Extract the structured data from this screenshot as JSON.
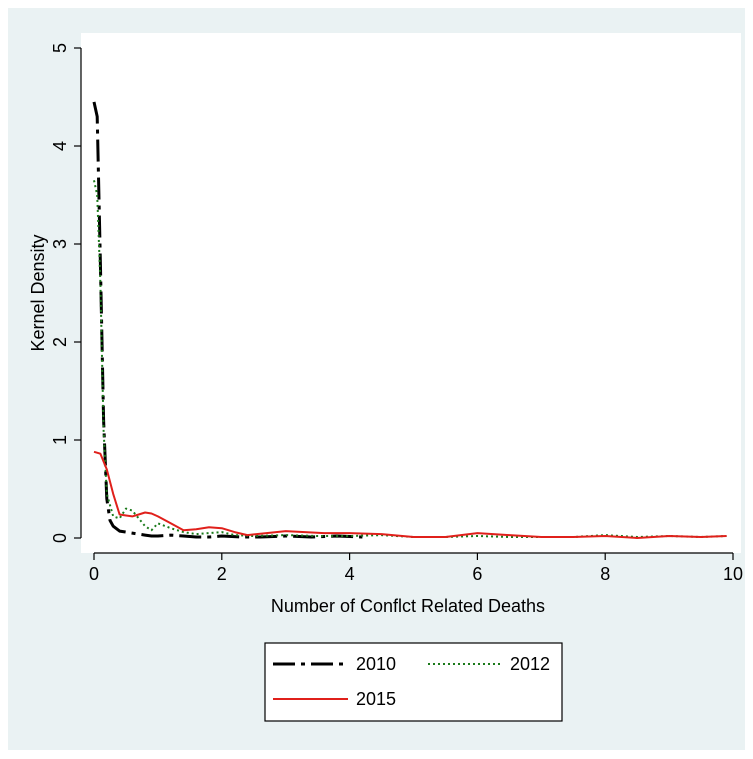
{
  "colors": {
    "outer_background": "#ffffff",
    "graph_region": "#eaf2f3",
    "plot_region": "#ffffff",
    "series_2010": "#000000",
    "series_2012": "#1a7a1a",
    "series_2015": "#e0201b"
  },
  "chart_data": {
    "type": "line",
    "title": "",
    "xlabel": "Number of Conflct Related Deaths",
    "ylabel": "Kernel Density",
    "xlim": [
      0,
      10
    ],
    "ylim": [
      0,
      5
    ],
    "x_ticks": [
      0,
      2,
      4,
      6,
      8,
      10
    ],
    "y_ticks": [
      0,
      1,
      2,
      3,
      4,
      5
    ],
    "grid": false,
    "legend_position": "bottom",
    "series": [
      {
        "name": "2010",
        "style": "long-dash-dot",
        "x": [
          0.0,
          0.05,
          0.1,
          0.15,
          0.2,
          0.25,
          0.3,
          0.4,
          0.5,
          0.6,
          0.7,
          0.8,
          0.9,
          1.0,
          1.2,
          1.4,
          1.6,
          1.8,
          2.0,
          2.3,
          2.6,
          3.0,
          3.4,
          3.8,
          4.2
        ],
        "y": [
          4.45,
          4.3,
          2.8,
          1.2,
          0.4,
          0.18,
          0.12,
          0.07,
          0.06,
          0.05,
          0.04,
          0.03,
          0.02,
          0.02,
          0.03,
          0.02,
          0.01,
          0.01,
          0.02,
          0.01,
          0.01,
          0.02,
          0.01,
          0.02,
          0.01
        ]
      },
      {
        "name": "2012",
        "style": "dotted",
        "x": [
          0.0,
          0.05,
          0.1,
          0.15,
          0.2,
          0.3,
          0.4,
          0.5,
          0.6,
          0.7,
          0.8,
          0.9,
          1.0,
          1.2,
          1.4,
          1.6,
          1.8,
          2.0,
          2.2,
          2.5,
          3.0,
          3.5,
          4.0,
          4.5,
          5.0,
          5.5,
          6.0,
          6.5,
          7.0,
          7.5,
          8.0,
          8.5,
          9.0,
          9.5,
          9.9
        ],
        "y": [
          3.65,
          3.5,
          2.6,
          1.1,
          0.45,
          0.22,
          0.2,
          0.3,
          0.28,
          0.2,
          0.12,
          0.08,
          0.15,
          0.1,
          0.06,
          0.04,
          0.05,
          0.06,
          0.03,
          0.02,
          0.03,
          0.02,
          0.02,
          0.03,
          0.01,
          0.01,
          0.02,
          0.01,
          0.01,
          0.01,
          0.03,
          0.01,
          0.02,
          0.01,
          0.02
        ]
      },
      {
        "name": "2015",
        "style": "solid",
        "x": [
          0.0,
          0.1,
          0.2,
          0.3,
          0.4,
          0.5,
          0.6,
          0.7,
          0.8,
          0.9,
          1.0,
          1.2,
          1.4,
          1.6,
          1.8,
          2.0,
          2.2,
          2.4,
          2.7,
          3.0,
          3.3,
          3.6,
          4.0,
          4.5,
          5.0,
          5.5,
          6.0,
          6.5,
          7.0,
          7.5,
          8.0,
          8.5,
          9.0,
          9.5,
          9.9
        ],
        "y": [
          0.88,
          0.86,
          0.7,
          0.45,
          0.24,
          0.23,
          0.22,
          0.24,
          0.26,
          0.25,
          0.22,
          0.15,
          0.08,
          0.09,
          0.11,
          0.1,
          0.06,
          0.03,
          0.05,
          0.07,
          0.06,
          0.05,
          0.05,
          0.04,
          0.01,
          0.01,
          0.05,
          0.03,
          0.01,
          0.01,
          0.02,
          0.0,
          0.02,
          0.01,
          0.02
        ]
      }
    ]
  }
}
